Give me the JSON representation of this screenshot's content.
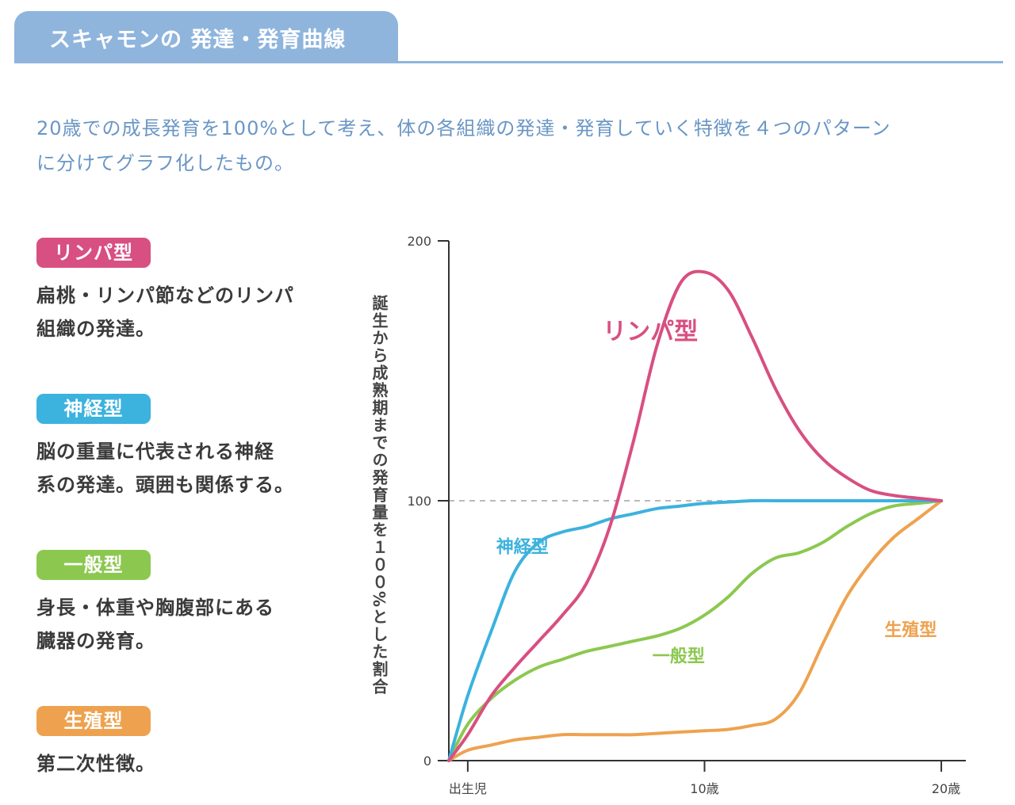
{
  "header": {
    "title": "スキャモンの 発達・発育曲線"
  },
  "description": {
    "line1": "20歳での成長発育を100%として考え、体の各組織の発達・発育していく特徴を４つのパターン",
    "line2": "に分けてグラフ化したもの。"
  },
  "types": [
    {
      "badge": "リンパ型",
      "color": "#d84f81",
      "desc1": "扁桃・リンパ節などのリンパ",
      "desc2": "組織の発達。"
    },
    {
      "badge": "神経型",
      "color": "#3cb2de",
      "desc1": "脳の重量に代表される神経",
      "desc2": "系の発達。頭囲も関係する。"
    },
    {
      "badge": "一般型",
      "color": "#8cc850",
      "desc1": "身長・体重や胸腹部にある",
      "desc2": "臓器の発育。"
    },
    {
      "badge": "生殖型",
      "color": "#eea24f",
      "desc1": "第二次性徴。",
      "desc2": ""
    }
  ],
  "chart_data": {
    "type": "line",
    "title": "",
    "xlabel": "",
    "ylabel": "誕生から成熟期までの発育量を１００%とした割合",
    "x_ticks": [
      {
        "x": 0,
        "label": "出生児"
      },
      {
        "x": 10,
        "label": "10歳"
      },
      {
        "x": 20,
        "label": "20歳"
      }
    ],
    "y_ticks": [
      {
        "y": 0,
        "label": "0"
      },
      {
        "y": 100,
        "label": "100"
      },
      {
        "y": 200,
        "label": "200"
      }
    ],
    "xlim": [
      -0.8,
      20.5
    ],
    "ylim": [
      0,
      200
    ],
    "reference_line_y": 100,
    "grid": false,
    "series": [
      {
        "name": "リンパ型",
        "color": "#d84f81",
        "label_size": "large",
        "label_at": [
          5.7,
          162
        ],
        "x": [
          -0.8,
          0,
          1,
          2,
          3,
          4,
          5,
          6,
          7,
          8,
          9,
          10,
          11,
          12,
          13,
          14,
          15,
          16,
          17,
          18,
          19,
          20
        ],
        "y": [
          0,
          10,
          25,
          36,
          46,
          56,
          68,
          90,
          123,
          160,
          184,
          188,
          181,
          163,
          143,
          127,
          116,
          109,
          104,
          102,
          101,
          100
        ]
      },
      {
        "name": "神経型",
        "color": "#3cb2de",
        "label_size": "small",
        "label_at": [
          1.2,
          80
        ],
        "x": [
          -0.8,
          0,
          1,
          2,
          3,
          4,
          5,
          6,
          7,
          8,
          9,
          10,
          11,
          12,
          13,
          14,
          15,
          16,
          17,
          18,
          19,
          20
        ],
        "y": [
          0,
          25,
          50,
          73,
          84,
          88,
          90,
          93,
          95,
          97,
          98,
          99,
          99.5,
          100,
          100,
          100,
          100,
          100,
          100,
          100,
          100,
          100
        ]
      },
      {
        "name": "一般型",
        "color": "#8cc850",
        "label_size": "small",
        "label_at": [
          7.8,
          38
        ],
        "x": [
          -0.8,
          0,
          1,
          2,
          3,
          4,
          5,
          6,
          7,
          8,
          9,
          10,
          11,
          12,
          13,
          14,
          15,
          16,
          17,
          18,
          19,
          20
        ],
        "y": [
          0,
          14,
          24,
          31,
          36,
          39,
          42,
          44,
          46,
          48,
          51,
          56,
          63,
          72,
          78,
          80,
          84,
          90,
          95,
          98,
          99,
          100
        ]
      },
      {
        "name": "生殖型",
        "color": "#eea24f",
        "label_size": "small",
        "label_at": [
          17.6,
          48
        ],
        "x": [
          -0.8,
          0,
          1,
          2,
          3,
          4,
          5,
          6,
          7,
          8,
          9,
          10,
          11,
          12,
          13,
          14,
          15,
          16,
          17,
          18,
          19,
          20
        ],
        "y": [
          0,
          4,
          6,
          8,
          9,
          10,
          10,
          10,
          10,
          10.5,
          11,
          11.5,
          12,
          13.5,
          16,
          26,
          45,
          63,
          76,
          86,
          93,
          100
        ]
      }
    ]
  }
}
